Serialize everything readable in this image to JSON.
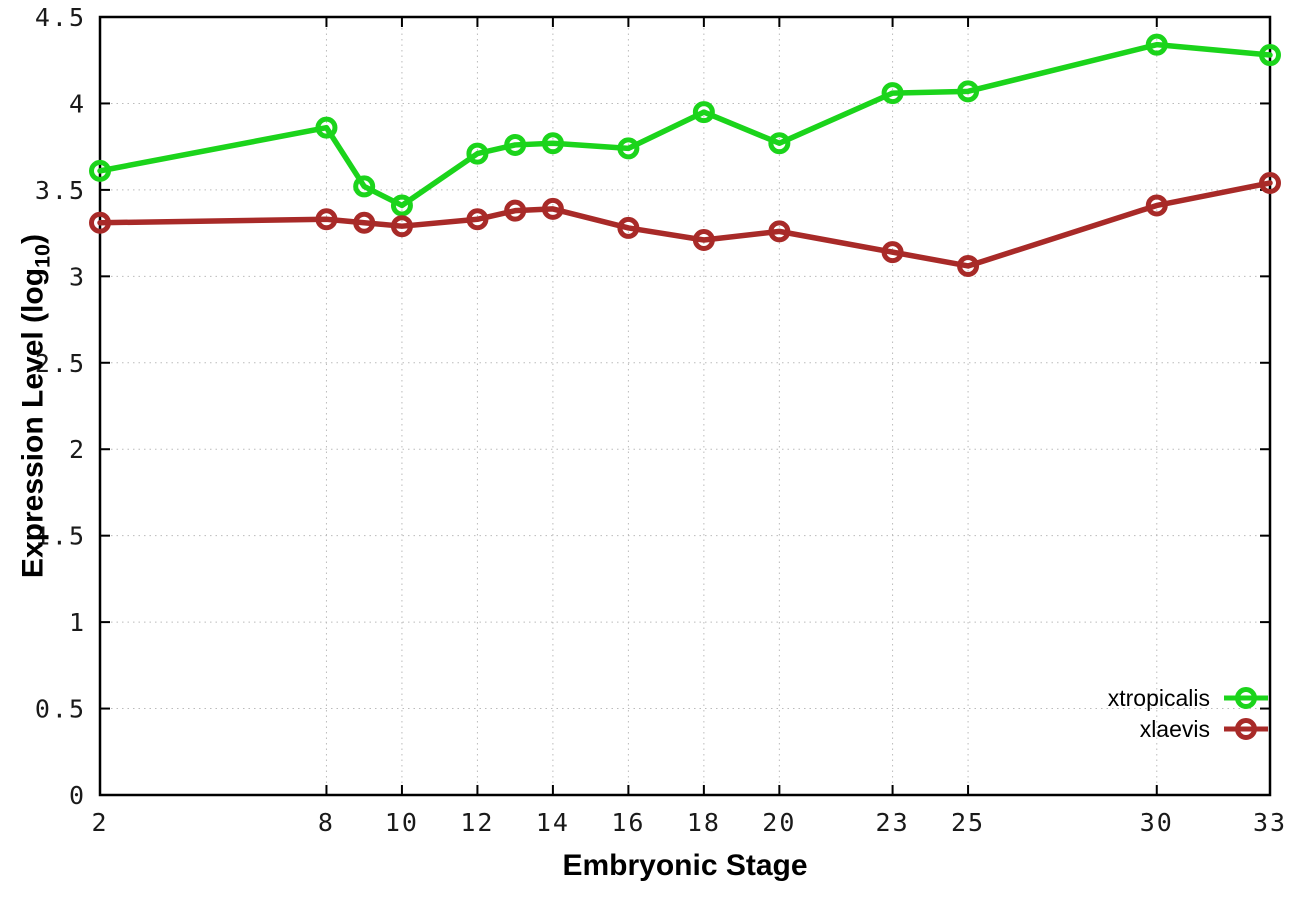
{
  "chart_data": {
    "type": "line",
    "title": "",
    "xlabel": "Embryonic Stage",
    "ylabel": "Expression Level (log10)",
    "ylabel_parts": {
      "pre": "Expression Level (log",
      "sub": "10",
      "post": ")"
    },
    "x": [
      2,
      8,
      9,
      10,
      12,
      13,
      14,
      16,
      18,
      20,
      23,
      25,
      30,
      33
    ],
    "series": [
      {
        "name": "xtropicalis",
        "color": "#1bd41b",
        "values": [
          3.61,
          3.86,
          3.52,
          3.41,
          3.71,
          3.76,
          3.77,
          3.74,
          3.95,
          3.77,
          4.06,
          4.07,
          4.34,
          4.28
        ]
      },
      {
        "name": "xlaevis",
        "color": "#a82a28",
        "values": [
          3.31,
          3.33,
          3.31,
          3.29,
          3.33,
          3.38,
          3.39,
          3.28,
          3.21,
          3.26,
          3.14,
          3.06,
          3.41,
          3.54
        ]
      }
    ],
    "x_ticks": [
      2,
      8,
      10,
      12,
      14,
      16,
      18,
      20,
      23,
      25,
      30,
      33
    ],
    "y_ticks": [
      0,
      0.5,
      1,
      1.5,
      2,
      2.5,
      3,
      3.5,
      4,
      4.5
    ],
    "xlim": [
      2,
      33
    ],
    "ylim": [
      0,
      4.5
    ],
    "grid": true,
    "legend_position": "bottom-right-inside"
  },
  "colors": {
    "grid": "#bbbbbb",
    "axis": "#000000",
    "background": "#ffffff",
    "tick_label": "#1a1a1a"
  }
}
